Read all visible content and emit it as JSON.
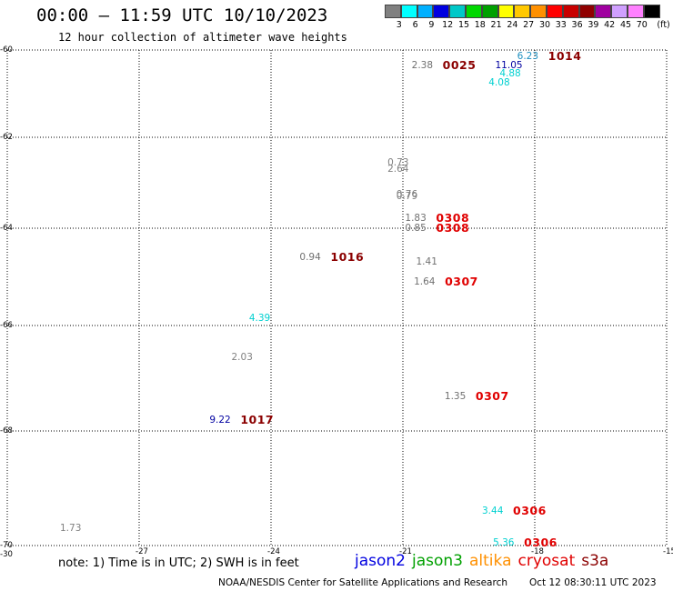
{
  "header": {
    "title": "00:00 – 11:59 UTC 10/10/2023",
    "subtitle": "12 hour collection of altimeter wave heights"
  },
  "colorbar": {
    "colors": [
      "#808080",
      "#00ffff",
      "#00b0ff",
      "#0000e0",
      "#00c8c8",
      "#00d800",
      "#00a000",
      "#ffff00",
      "#ffc800",
      "#ff9000",
      "#ff0000",
      "#c80000",
      "#900000",
      "#a000a0",
      "#d0a0ff",
      "#ff80ff",
      "#000000"
    ],
    "labels": [
      "3",
      "6",
      "9",
      "12",
      "15",
      "18",
      "21",
      "24",
      "27",
      "30",
      "33",
      "36",
      "39",
      "42",
      "45",
      "70",
      "(ft)"
    ]
  },
  "axes": {
    "lat_ticks": [
      -60,
      -62,
      -64,
      -66,
      -68,
      -70
    ],
    "lon_ticks": [
      -30,
      -27,
      -24,
      -21,
      -18,
      -15
    ],
    "lat_range": [
      -70,
      -60
    ],
    "lon_range": [
      -30,
      -15
    ],
    "grid": true
  },
  "observations": [
    {
      "lat": -60.15,
      "lon": -18.4,
      "swh": "6.23",
      "color": "#1e90c0",
      "time": "1014",
      "time_color": "#8b0000"
    },
    {
      "lat": -60.35,
      "lon": -20.8,
      "swh": "2.38",
      "color": "#707070",
      "time": "0025",
      "time_color": "#8b0000"
    },
    {
      "lat": -60.35,
      "lon": -18.9,
      "swh": "11.05",
      "color": "#0000a0"
    },
    {
      "lat": -60.55,
      "lon": -18.8,
      "swh": "4.88",
      "color": "#00d0d0"
    },
    {
      "lat": -60.75,
      "lon": -19.05,
      "swh": "4.08",
      "color": "#00d0d0"
    },
    {
      "lat": -62.55,
      "lon": -21.35,
      "swh": "0.73",
      "color": "#808080"
    },
    {
      "lat": -62.7,
      "lon": -21.35,
      "swh": "2.64",
      "color": "#808080"
    },
    {
      "lat": -63.25,
      "lon": -21.15,
      "swh": "0.76",
      "color": "#808080"
    },
    {
      "lat": -63.3,
      "lon": -21.15,
      "swh": "0.79",
      "color": "#808080"
    },
    {
      "lat": -63.78,
      "lon": -20.95,
      "swh": "1.83",
      "color": "#707070",
      "time": "0308",
      "time_color": "#e00000"
    },
    {
      "lat": -64.0,
      "lon": -20.95,
      "swh": "0.85",
      "color": "#707070",
      "time": "0308",
      "time_color": "#e00000"
    },
    {
      "lat": -64.6,
      "lon": -23.35,
      "swh": "0.94",
      "color": "#707070",
      "time": "1016",
      "time_color": "#8b0000"
    },
    {
      "lat": -64.7,
      "lon": -20.7,
      "swh": "1.41",
      "color": "#707070"
    },
    {
      "lat": -65.1,
      "lon": -20.75,
      "swh": "1.64",
      "color": "#707070",
      "time": "0307",
      "time_color": "#e00000"
    },
    {
      "lat": -65.85,
      "lon": -24.5,
      "swh": "4.39",
      "color": "#00d0d0"
    },
    {
      "lat": -66.6,
      "lon": -24.9,
      "swh": "2.03",
      "color": "#808080"
    },
    {
      "lat": -67.35,
      "lon": -20.05,
      "swh": "1.35",
      "color": "#707070",
      "time": "0307",
      "time_color": "#e00000"
    },
    {
      "lat": -67.8,
      "lon": -25.4,
      "swh": "9.22",
      "color": "#0000a0",
      "time": "1017",
      "time_color": "#8b0000"
    },
    {
      "lat": -69.4,
      "lon": -19.2,
      "swh": "3.44",
      "color": "#00d0d0",
      "time": "0306",
      "time_color": "#e00000"
    },
    {
      "lat": -69.7,
      "lon": -28.8,
      "swh": "1.73",
      "color": "#808080"
    },
    {
      "lat": -69.95,
      "lon": -18.95,
      "swh": "5.36",
      "color": "#00d0d0",
      "time": "0306",
      "time_color": "#e00000"
    }
  ],
  "note": {
    "text": "note: 1) Time is in UTC; 2) SWH is in feet"
  },
  "satellites": [
    {
      "name": "jason2",
      "color": "#0000e0"
    },
    {
      "name": "jason3",
      "color": "#00a000"
    },
    {
      "name": "altika",
      "color": "#ff9000"
    },
    {
      "name": "cryosat",
      "color": "#e00000"
    },
    {
      "name": "s3a",
      "color": "#8b0000"
    }
  ],
  "footer": {
    "credit": "NOAA/NESDIS Center for Satellite Applications and Research",
    "timestamp": "Oct 12 08:30:11 UTC 2023"
  }
}
